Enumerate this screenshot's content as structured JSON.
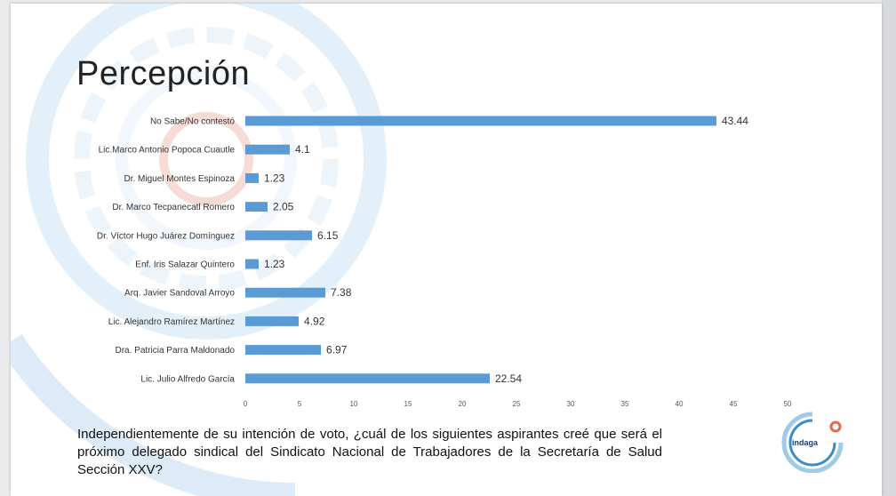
{
  "slide": {
    "title": "Percepción",
    "question": "Independientemente de su intención de voto, ¿cuál de los siguientes aspirantes creé que será el próximo delegado sindical del Sindicato Nacional de Trabajadores de la Secretaría de Salud Sección XXV?"
  },
  "logo": {
    "text": "indaga",
    "icon": "indaga-logo-icon"
  },
  "colors": {
    "bar": "#5b9bd5",
    "accent": "#e06a4e"
  },
  "chart_data": {
    "type": "bar",
    "orientation": "horizontal",
    "title": "",
    "xlabel": "",
    "ylabel": "",
    "categories": [
      "No Sabe/No contestó",
      "Lic.Marco Antonio Popoca Cuautle",
      "Dr. Miguel Montes Espinoza",
      "Dr. Marco Tecpanecatl Romero",
      "Dr. Víctor Hugo Juárez Domínguez",
      "Enf. Iris Salazar Quintero",
      "Arq. Javier Sandoval Arroyo",
      "Lic. Alejandro Ramírez Martínez",
      "Dra. Patricia Parra Maldonado",
      "Lic. Julio Alfredo García"
    ],
    "values": [
      43.44,
      4.1,
      1.23,
      2.05,
      6.15,
      1.23,
      7.38,
      4.92,
      6.97,
      22.54
    ],
    "value_labels": [
      "43.44",
      "4.1",
      "1.23",
      "2.05",
      "6.15",
      "1.23",
      "7.38",
      "4.92",
      "6.97",
      "22.54"
    ],
    "xlim": [
      0,
      50
    ],
    "xticks": [
      0,
      5,
      10,
      15,
      20,
      25,
      30,
      35,
      40,
      45,
      50
    ],
    "grid": false
  }
}
